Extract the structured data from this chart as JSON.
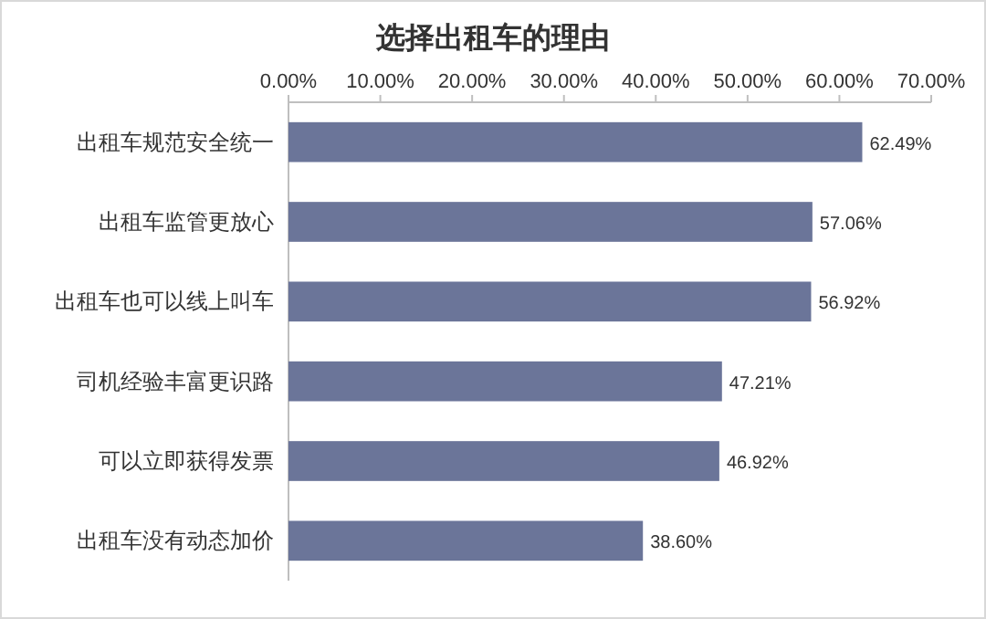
{
  "chart_data": {
    "type": "bar",
    "orientation": "horizontal",
    "title": "选择出租车的理由",
    "categories": [
      "出租车规范安全统一",
      "出租车监管更放心",
      "出租车也可以线上叫车",
      "司机经验丰富更识路",
      "可以立即获得发票",
      "出租车没有动态加价"
    ],
    "values": [
      62.49,
      57.06,
      56.92,
      47.21,
      46.92,
      38.6
    ],
    "value_labels": [
      "62.49%",
      "57.06%",
      "56.92%",
      "47.21%",
      "46.92%",
      "38.60%"
    ],
    "color": "#6b7599",
    "xlim": [
      0,
      70
    ],
    "xticks": [
      {
        "value": 0,
        "label": "0.00%"
      },
      {
        "value": 10,
        "label": "10.00%"
      },
      {
        "value": 20,
        "label": "20.00%"
      },
      {
        "value": 30,
        "label": "30.00%"
      },
      {
        "value": 40,
        "label": "40.00%"
      },
      {
        "value": 50,
        "label": "50.00%"
      },
      {
        "value": 60,
        "label": "60.00%"
      },
      {
        "value": 70,
        "label": "70.00%"
      }
    ]
  }
}
